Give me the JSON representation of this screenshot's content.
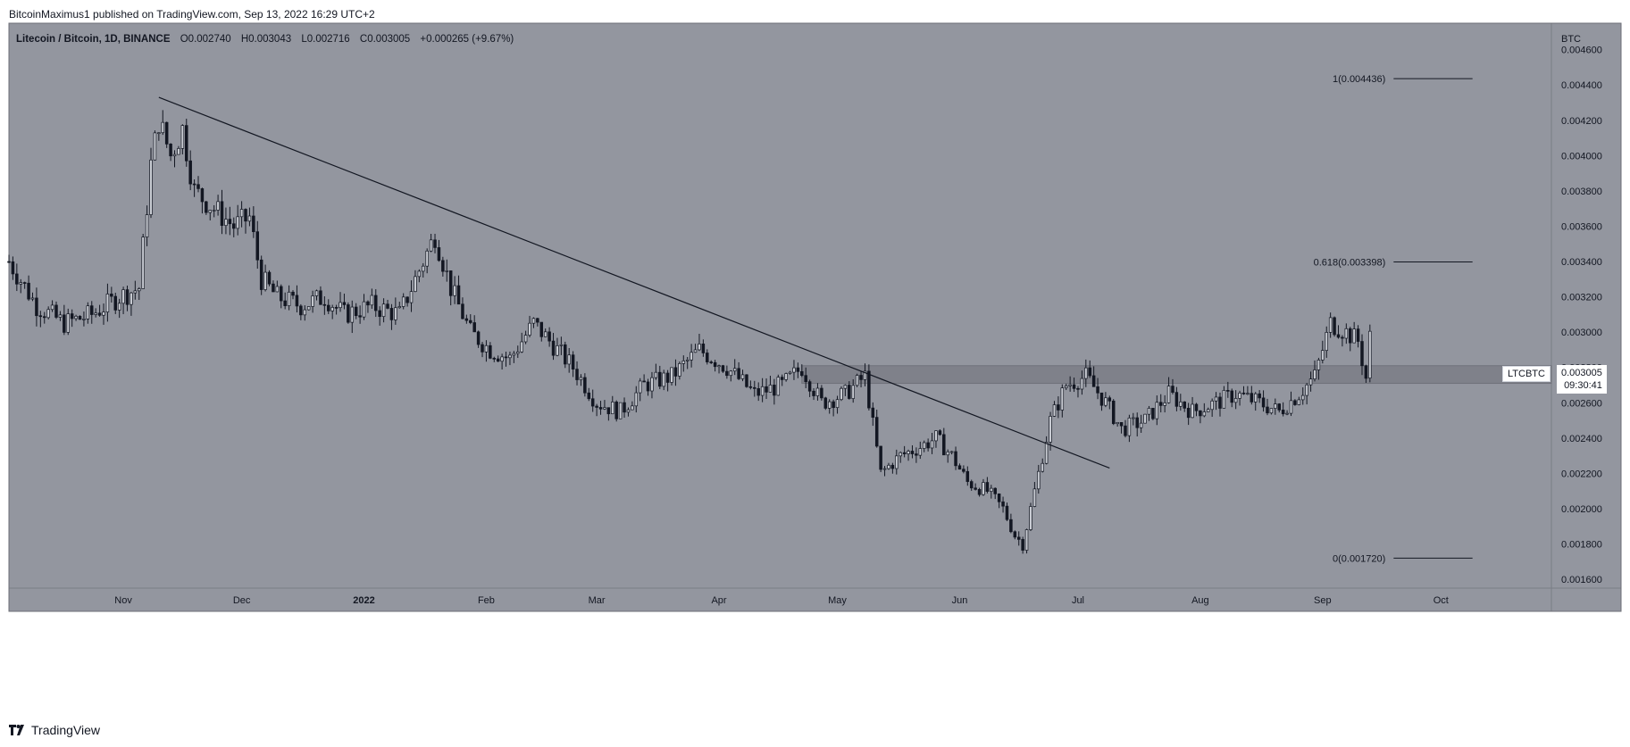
{
  "header": {
    "published": "BitcoinMaximus1 published on TradingView.com, Sep 13, 2022 16:29 UTC+2"
  },
  "legend": {
    "symbol": "Litecoin / Bitcoin, 1D, BINANCE",
    "open_label": "O",
    "open": "0.002740",
    "high_label": "H",
    "high": "0.003043",
    "low_label": "L",
    "low": "0.002716",
    "close_label": "C",
    "close": "0.003005",
    "change": "+0.000265 (+9.67%)"
  },
  "price_scale": {
    "currency": "BTC"
  },
  "last_price": {
    "symbol": "LTCBTC",
    "price": "0.003005",
    "countdown": "09:30:41"
  },
  "footer": {
    "brand": "TradingView"
  },
  "colors": {
    "chart_bg": "#93969f",
    "candle": "#131722",
    "resistance_zone": "#7b7e86"
  },
  "chart_data": {
    "type": "candlestick",
    "title": "Litecoin / Bitcoin, 1D, BINANCE",
    "ylabel": "BTC",
    "ylim": [
      0.00155,
      0.00475
    ],
    "xlim": [
      "2021-10-03",
      "2022-10-29"
    ],
    "y_ticks": [
      "0.001600",
      "0.001800",
      "0.002000",
      "0.002200",
      "0.002400",
      "0.002600",
      "0.002800",
      "0.003000",
      "0.003200",
      "0.003400",
      "0.003600",
      "0.003800",
      "0.004000",
      "0.004200",
      "0.004400",
      "0.004600"
    ],
    "x_ticks": [
      {
        "label": "Nov",
        "date": "2021-11-01"
      },
      {
        "label": "Dec",
        "date": "2021-12-01"
      },
      {
        "label": "2022",
        "date": "2022-01-01"
      },
      {
        "label": "Feb",
        "date": "2022-02-01"
      },
      {
        "label": "Mar",
        "date": "2022-03-01"
      },
      {
        "label": "Apr",
        "date": "2022-04-01"
      },
      {
        "label": "May",
        "date": "2022-05-01"
      },
      {
        "label": "Jun",
        "date": "2022-06-01"
      },
      {
        "label": "Jul",
        "date": "2022-07-01"
      },
      {
        "label": "Aug",
        "date": "2022-08-01"
      },
      {
        "label": "Sep",
        "date": "2022-09-01"
      },
      {
        "label": "Oct",
        "date": "2022-10-01"
      }
    ],
    "close_path": [
      [
        "2021-10-03",
        0.0034
      ],
      [
        "2021-10-10",
        0.00315
      ],
      [
        "2021-10-17",
        0.00305
      ],
      [
        "2021-10-24",
        0.0031
      ],
      [
        "2021-10-31",
        0.0032
      ],
      [
        "2021-11-05",
        0.00325
      ],
      [
        "2021-11-08",
        0.00395
      ],
      [
        "2021-11-10",
        0.0042
      ],
      [
        "2021-11-13",
        0.004
      ],
      [
        "2021-11-16",
        0.00415
      ],
      [
        "2021-11-19",
        0.0038
      ],
      [
        "2021-11-24",
        0.0037
      ],
      [
        "2021-11-29",
        0.0036
      ],
      [
        "2021-12-03",
        0.00365
      ],
      [
        "2021-12-06",
        0.0033
      ],
      [
        "2021-12-10",
        0.0032
      ],
      [
        "2021-12-16",
        0.00315
      ],
      [
        "2021-12-22",
        0.0032
      ],
      [
        "2021-12-27",
        0.0031
      ],
      [
        "2022-01-03",
        0.00315
      ],
      [
        "2022-01-10",
        0.0031
      ],
      [
        "2022-01-15",
        0.00335
      ],
      [
        "2022-01-19",
        0.00355
      ],
      [
        "2022-01-23",
        0.00325
      ],
      [
        "2022-01-28",
        0.003
      ],
      [
        "2022-02-02",
        0.0029
      ],
      [
        "2022-02-07",
        0.00285
      ],
      [
        "2022-02-13",
        0.00305
      ],
      [
        "2022-02-17",
        0.00295
      ],
      [
        "2022-02-23",
        0.0028
      ],
      [
        "2022-03-01",
        0.0026
      ],
      [
        "2022-03-07",
        0.00255
      ],
      [
        "2022-03-13",
        0.0027
      ],
      [
        "2022-03-20",
        0.00275
      ],
      [
        "2022-03-27",
        0.0029
      ],
      [
        "2022-04-03",
        0.0028
      ],
      [
        "2022-04-10",
        0.00265
      ],
      [
        "2022-04-17",
        0.0027
      ],
      [
        "2022-04-22",
        0.0028
      ],
      [
        "2022-04-27",
        0.0026
      ],
      [
        "2022-05-03",
        0.00265
      ],
      [
        "2022-05-08",
        0.00275
      ],
      [
        "2022-05-12",
        0.0022
      ],
      [
        "2022-05-17",
        0.0023
      ],
      [
        "2022-05-22",
        0.00235
      ],
      [
        "2022-05-26",
        0.0024
      ],
      [
        "2022-05-30",
        0.0023
      ],
      [
        "2022-06-03",
        0.00215
      ],
      [
        "2022-06-08",
        0.0021
      ],
      [
        "2022-06-12",
        0.002
      ],
      [
        "2022-06-15",
        0.00185
      ],
      [
        "2022-06-17",
        0.0018
      ],
      [
        "2022-06-20",
        0.0021
      ],
      [
        "2022-06-24",
        0.0025
      ],
      [
        "2022-06-28",
        0.0027
      ],
      [
        "2022-07-03",
        0.00275
      ],
      [
        "2022-07-08",
        0.0026
      ],
      [
        "2022-07-12",
        0.00245
      ],
      [
        "2022-07-18",
        0.0025
      ],
      [
        "2022-07-24",
        0.00265
      ],
      [
        "2022-07-30",
        0.00255
      ],
      [
        "2022-08-05",
        0.0026
      ],
      [
        "2022-08-10",
        0.00265
      ],
      [
        "2022-08-16",
        0.0026
      ],
      [
        "2022-08-21",
        0.00255
      ],
      [
        "2022-08-26",
        0.00265
      ],
      [
        "2022-08-30",
        0.00275
      ],
      [
        "2022-09-03",
        0.00305
      ],
      [
        "2022-09-07",
        0.003
      ],
      [
        "2022-09-10",
        0.00295
      ],
      [
        "2022-09-12",
        0.00274
      ],
      [
        "2022-09-13",
        0.003005
      ]
    ],
    "last_candle": {
      "date": "2022-09-13",
      "open": 0.00274,
      "high": 0.003043,
      "low": 0.002716,
      "close": 0.003005
    },
    "trendline": {
      "start": [
        "2021-11-10",
        0.00433
      ],
      "end": [
        "2022-07-09",
        0.00223
      ]
    },
    "resistance_zone": {
      "from": "2022-04-22",
      "to": "2022-10-29",
      "low": 0.00271,
      "high": 0.00281
    },
    "fib_levels": [
      {
        "label": "1(0.004436)",
        "value": 0.004436
      },
      {
        "label": "0.618(0.003398)",
        "value": 0.003398
      },
      {
        "label": "0(0.001720)",
        "value": 0.00172
      }
    ],
    "grid": false
  }
}
